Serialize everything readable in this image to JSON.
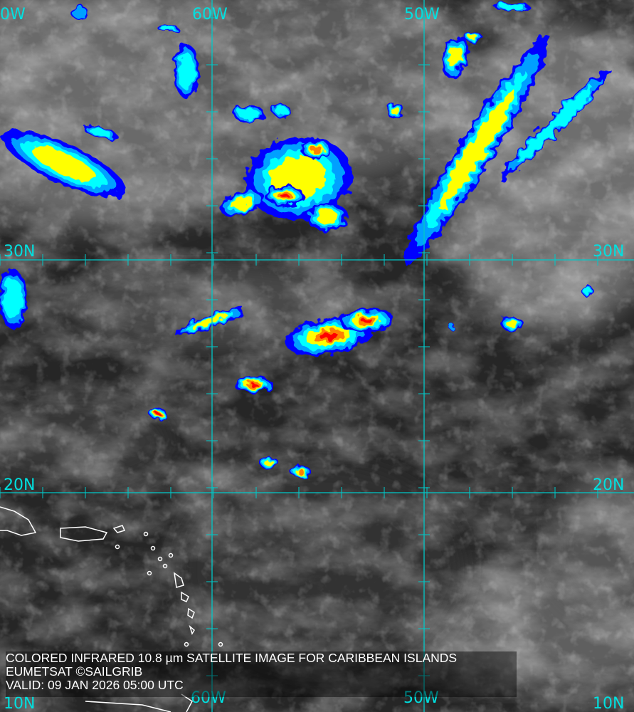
{
  "caption": {
    "line1": "COLORED INFRARED 10.8 µm SATELLITE IMAGE FOR CARIBBEAN ISLANDS",
    "line2": "EUMETSAT ©SAILGRIB",
    "line3": "VALID:  09 JAN 2026 05:00 UTC"
  },
  "grid_labels": {
    "top": [
      "0W",
      "60W",
      "50W"
    ],
    "bottom": [
      "10N",
      "60W",
      "50W",
      "10N"
    ],
    "left": [
      "30N",
      "20N"
    ],
    "right": [
      "30N",
      "20N"
    ]
  },
  "colors": {
    "grid": "#00c8c8",
    "label": "#00e0e0",
    "cold_cloud_scale": [
      "#0000ff",
      "#00a0ff",
      "#00ffff",
      "#ffff00",
      "#ff8000",
      "#ff0000"
    ],
    "coastline": "#ffffff"
  }
}
